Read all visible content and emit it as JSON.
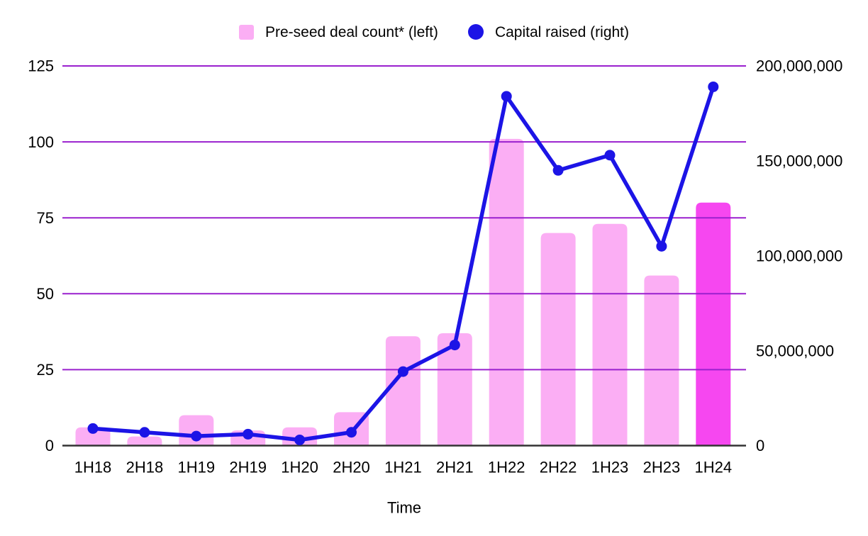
{
  "legend": {
    "items": [
      {
        "label": "Pre-seed deal count* (left)",
        "swatch": "square"
      },
      {
        "label": "Capital raised (right)",
        "swatch": "circle"
      }
    ]
  },
  "colors": {
    "bar_pink": "#FBAEF4",
    "bar_highlight_magenta": "#F647F0",
    "line_blue": "#1C14E6",
    "gridline_purple": "#9A20CE",
    "axis_line": "#333333",
    "text": "#000000",
    "background": "#FFFFFF"
  },
  "chart_data": {
    "type": "combo_bar_line",
    "title": "",
    "xlabel": "Time",
    "grid": true,
    "legend_position": "top",
    "categories": [
      "1H18",
      "2H18",
      "1H19",
      "2H19",
      "1H20",
      "2H20",
      "1H21",
      "2H21",
      "1H22",
      "2H22",
      "1H23",
      "2H23",
      "1H24"
    ],
    "series": [
      {
        "name": "Pre-seed deal count* (left)",
        "type": "bar",
        "axis": "left",
        "color": "#FBAEF4",
        "highlight_index": 12,
        "highlight_color": "#F647F0",
        "values": [
          6,
          3,
          10,
          5,
          6,
          11,
          36,
          37,
          101,
          70,
          73,
          56,
          80
        ]
      },
      {
        "name": "Capital raised (right)",
        "type": "line",
        "axis": "right",
        "color": "#1C14E6",
        "values": [
          9000000,
          7000000,
          5000000,
          6000000,
          3000000,
          7000000,
          39000000,
          53000000,
          184000000,
          145000000,
          153000000,
          105000000,
          189000000
        ]
      }
    ],
    "left_axis": {
      "min": 0,
      "max": 125,
      "ticks": [
        0,
        25,
        50,
        75,
        100,
        125
      ]
    },
    "right_axis": {
      "min": 0,
      "max": 200000000,
      "ticks": [
        0,
        50000000,
        100000000,
        150000000,
        200000000
      ]
    }
  }
}
